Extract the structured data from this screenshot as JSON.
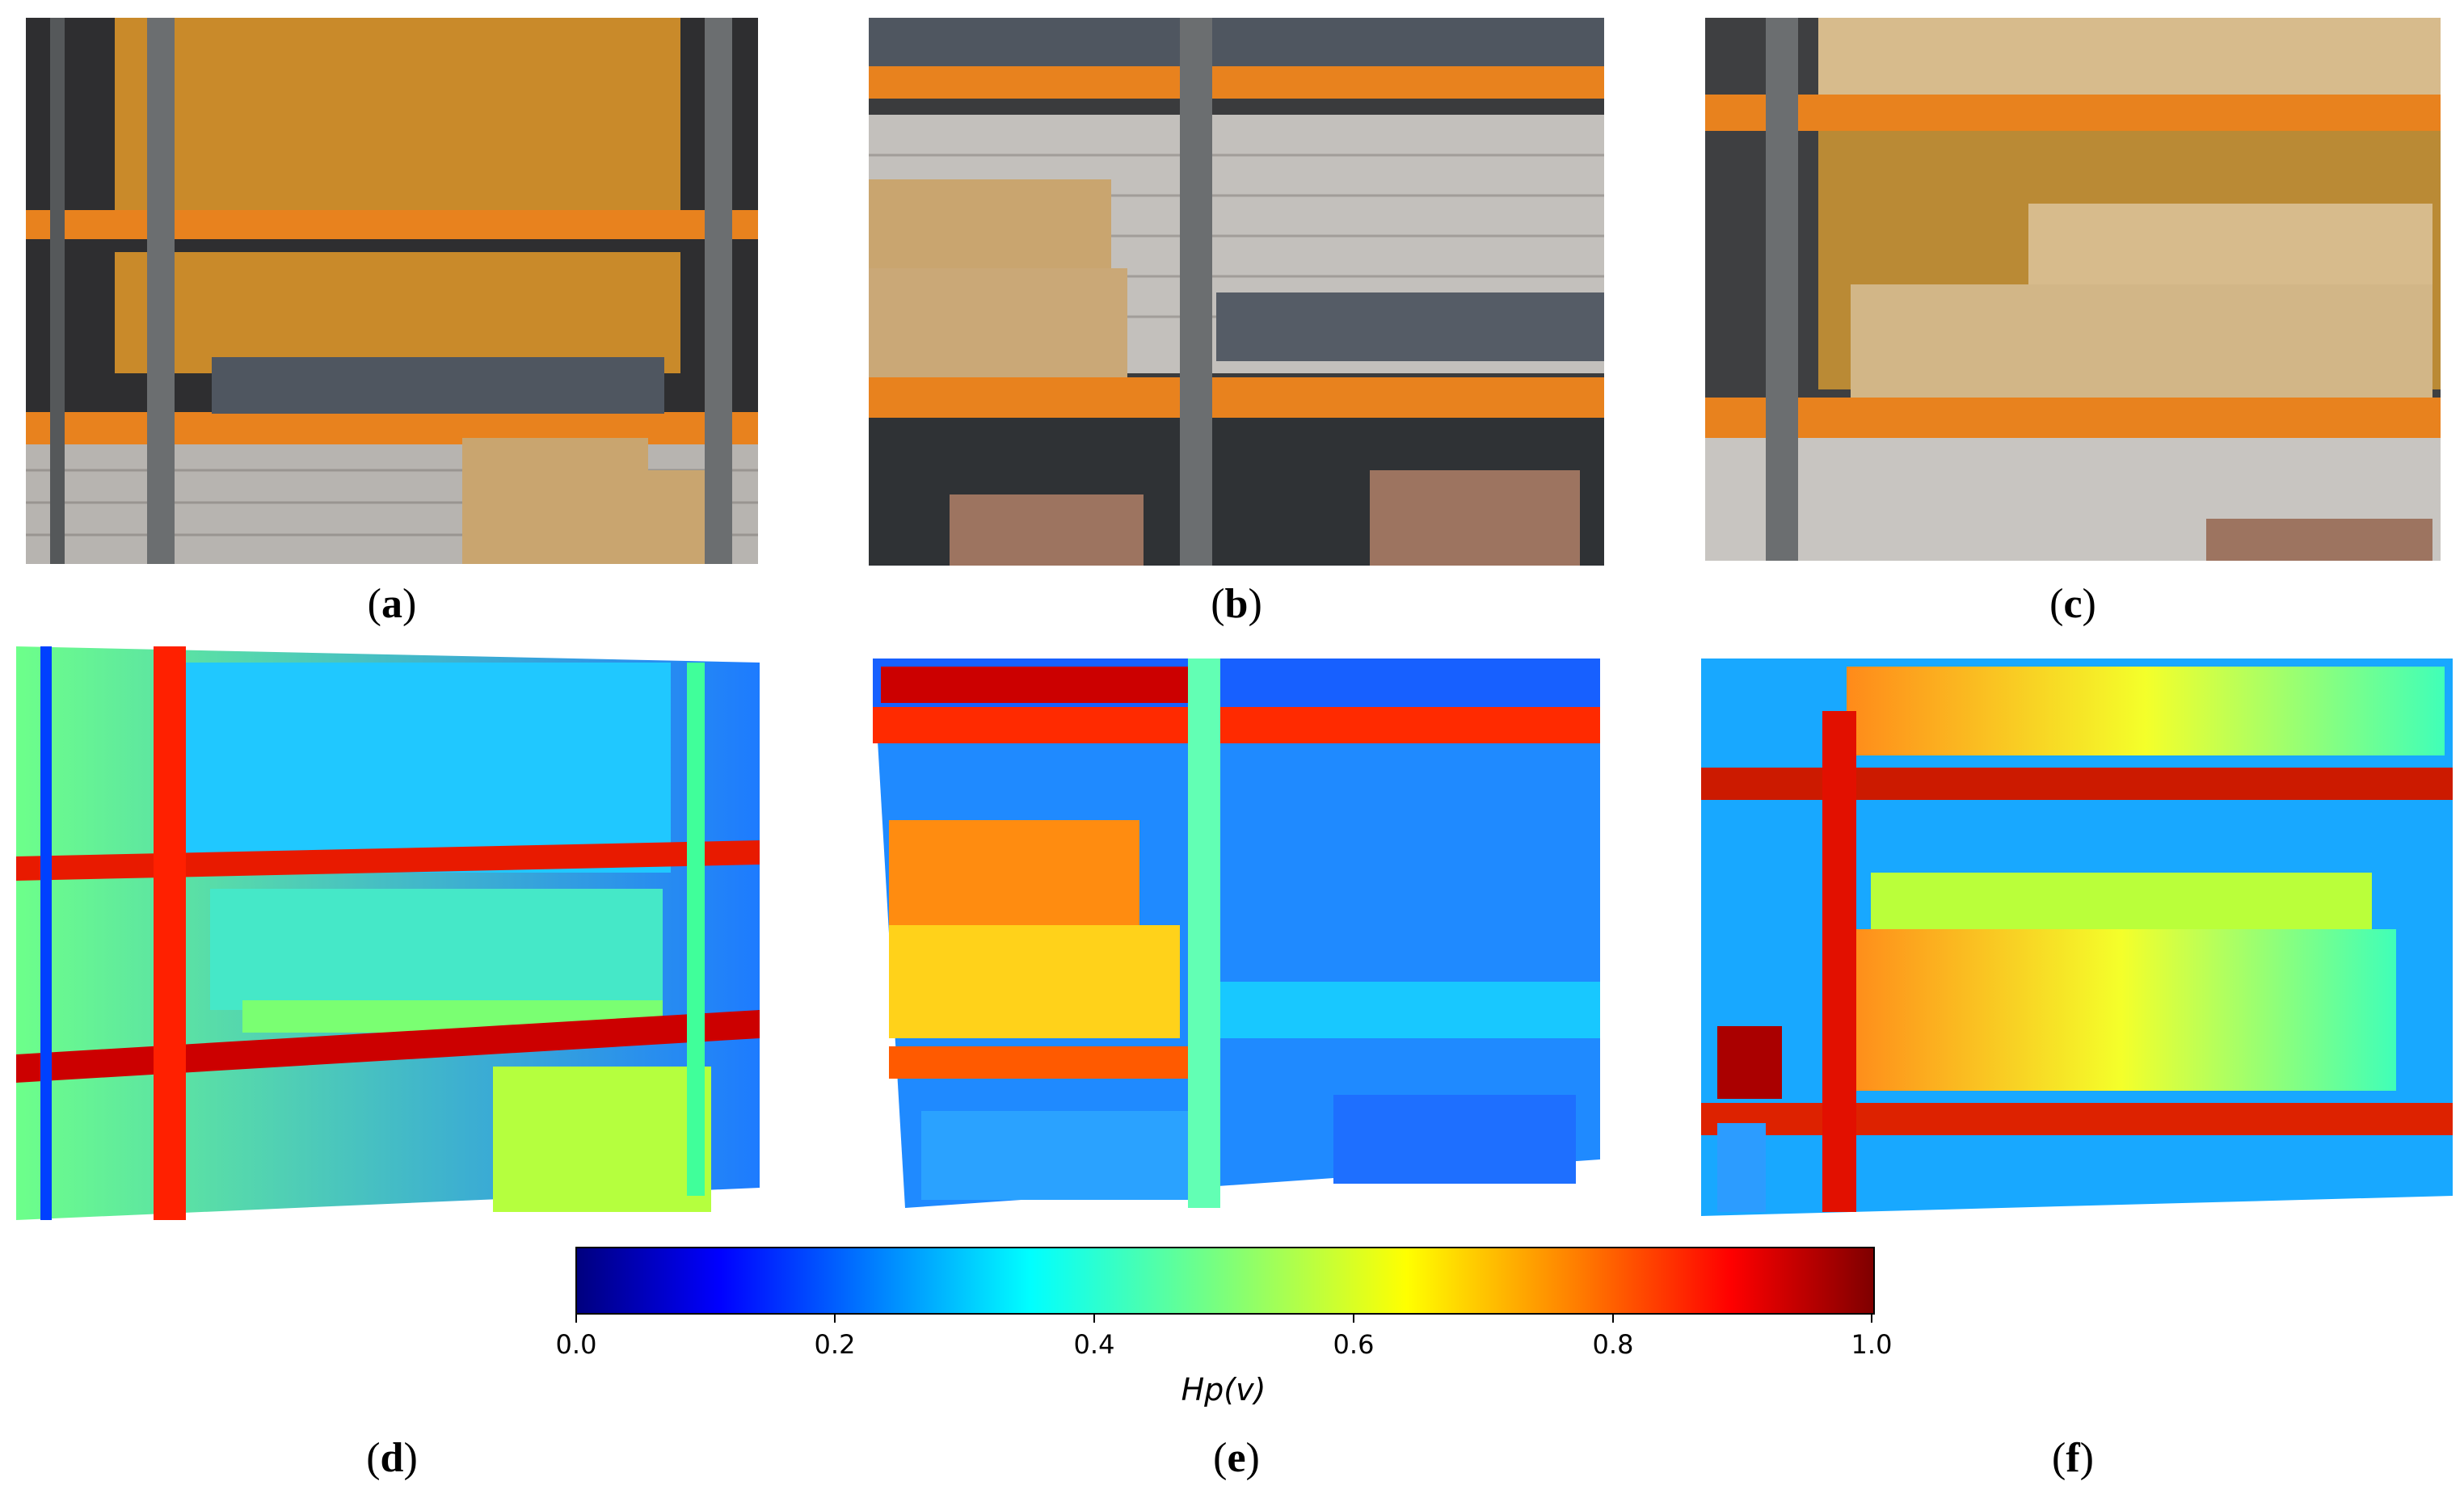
{
  "captions": {
    "a": "a",
    "b": "b",
    "c": "c",
    "d": "d",
    "e": "e",
    "f": "f"
  },
  "colorbar": {
    "tick_labels": [
      "0.0",
      "0.2",
      "0.4",
      "0.6",
      "0.8",
      "1.0"
    ],
    "label": "Hp(v)",
    "colormap": "jet",
    "range": [
      0.0,
      1.0
    ]
  },
  "colors": {
    "shelf_orange": "#e8821e",
    "frame_grey": "#6b6e70",
    "box_cardboard": "#c9a56f",
    "pallet_grey": "#4f5660",
    "wall_brick": "#b9b6b2",
    "map_low": "#0000ff",
    "map_high": "#7f0000"
  }
}
